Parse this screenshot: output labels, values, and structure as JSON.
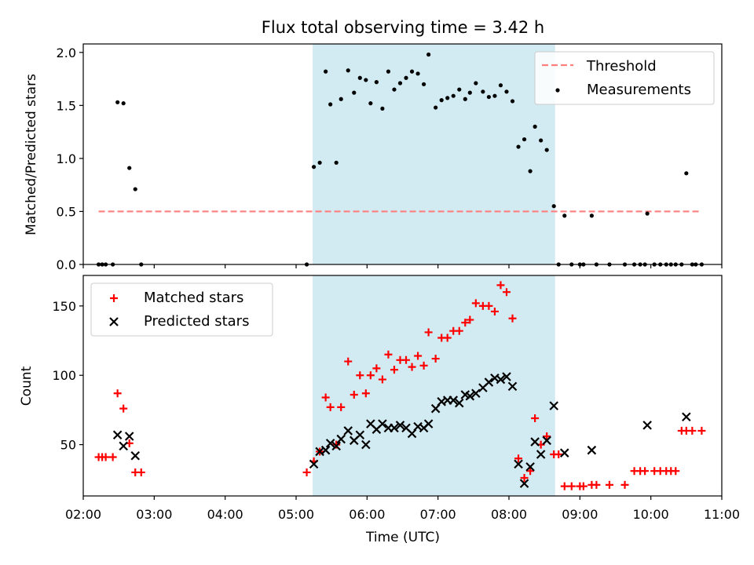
{
  "title": "Flux total observing time = 3.42 h",
  "xlabel": "Time (UTC)",
  "x_tick_labels": [
    "02:00",
    "03:00",
    "04:00",
    "05:00",
    "06:00",
    "07:00",
    "08:00",
    "09:00",
    "10:00",
    "11:00"
  ],
  "colors": {
    "threshold": "#ff7f7f",
    "measurements": "#000000",
    "matched": "#ff0000",
    "predicted": "#000000",
    "span": "#add8e6"
  },
  "chart_data": [
    {
      "type": "scatter",
      "ylabel": "Matched/Predicted stars",
      "xlim": [
        "02:00",
        "11:00"
      ],
      "ylim": [
        0,
        2.08
      ],
      "yticks": [
        0.0,
        0.5,
        1.0,
        1.5,
        2.0
      ],
      "ytick_labels": [
        "0.0",
        "0.5",
        "1.0",
        "1.5",
        "2.0"
      ],
      "legend": {
        "placement": "top-right",
        "entries": [
          "Threshold",
          "Measurements"
        ]
      },
      "highlight_span": [
        "05:14",
        "08:39"
      ],
      "threshold": {
        "name": "Threshold",
        "y": 0.5,
        "x_range": [
          "02:13",
          "10:43"
        ],
        "style": "dashed"
      },
      "series": [
        {
          "name": "Measurements",
          "points": [
            [
              "02:13",
              0
            ],
            [
              "02:16",
              0
            ],
            [
              "02:19",
              0
            ],
            [
              "02:25",
              0
            ],
            [
              "02:29",
              1.53
            ],
            [
              "02:34",
              1.52
            ],
            [
              "02:39",
              0.91
            ],
            [
              "02:44",
              0.71
            ],
            [
              "02:49",
              0
            ],
            [
              "05:09",
              0
            ],
            [
              "05:15",
              0.92
            ],
            [
              "05:20",
              0.96
            ],
            [
              "05:25",
              1.82
            ],
            [
              "05:29",
              1.51
            ],
            [
              "05:34",
              0.96
            ],
            [
              "05:38",
              1.56
            ],
            [
              "05:44",
              1.83
            ],
            [
              "05:49",
              1.62
            ],
            [
              "05:54",
              1.76
            ],
            [
              "05:59",
              1.74
            ],
            [
              "06:03",
              1.52
            ],
            [
              "06:08",
              1.72
            ],
            [
              "06:13",
              1.47
            ],
            [
              "06:18",
              1.82
            ],
            [
              "06:23",
              1.65
            ],
            [
              "06:28",
              1.71
            ],
            [
              "06:33",
              1.76
            ],
            [
              "06:38",
              1.82
            ],
            [
              "06:43",
              1.8
            ],
            [
              "06:48",
              1.7
            ],
            [
              "06:52",
              1.98
            ],
            [
              "06:58",
              1.48
            ],
            [
              "07:03",
              1.55
            ],
            [
              "07:08",
              1.57
            ],
            [
              "07:13",
              1.59
            ],
            [
              "07:18",
              1.65
            ],
            [
              "07:23",
              1.56
            ],
            [
              "07:27",
              1.62
            ],
            [
              "07:32",
              1.71
            ],
            [
              "07:38",
              1.63
            ],
            [
              "07:43",
              1.58
            ],
            [
              "07:48",
              1.59
            ],
            [
              "07:53",
              1.69
            ],
            [
              "07:58",
              1.63
            ],
            [
              "08:03",
              1.54
            ],
            [
              "08:08",
              1.11
            ],
            [
              "08:13",
              1.18
            ],
            [
              "08:18",
              0.88
            ],
            [
              "08:22",
              1.3
            ],
            [
              "08:27",
              1.17
            ],
            [
              "08:32",
              1.08
            ],
            [
              "08:38",
              0.55
            ],
            [
              "08:42",
              0
            ],
            [
              "08:47",
              0.46
            ],
            [
              "08:53",
              0
            ],
            [
              "09:00",
              0
            ],
            [
              "09:03",
              0
            ],
            [
              "09:10",
              0.46
            ],
            [
              "09:14",
              0
            ],
            [
              "09:25",
              0
            ],
            [
              "09:38",
              0
            ],
            [
              "09:46",
              0
            ],
            [
              "09:51",
              0
            ],
            [
              "09:55",
              0
            ],
            [
              "09:57",
              0.48
            ],
            [
              "10:03",
              0
            ],
            [
              "10:08",
              0
            ],
            [
              "10:13",
              0
            ],
            [
              "10:17",
              0
            ],
            [
              "10:21",
              0
            ],
            [
              "10:26",
              0
            ],
            [
              "10:30",
              0.86
            ],
            [
              "10:35",
              0
            ],
            [
              "10:38",
              0
            ],
            [
              "10:43",
              0
            ]
          ]
        }
      ]
    },
    {
      "type": "scatter",
      "ylabel": "Count",
      "xlim": [
        "02:00",
        "11:00"
      ],
      "ylim": [
        13,
        172
      ],
      "yticks": [
        50,
        100,
        150
      ],
      "ytick_labels": [
        "50",
        "100",
        "150"
      ],
      "legend": {
        "placement": "top-left",
        "entries": [
          "Matched stars",
          "Predicted stars"
        ]
      },
      "highlight_span": [
        "05:14",
        "08:39"
      ],
      "series": [
        {
          "name": "Matched stars",
          "marker": "plus",
          "points": [
            [
              "02:13",
              41
            ],
            [
              "02:16",
              41
            ],
            [
              "02:19",
              41
            ],
            [
              "02:25",
              41
            ],
            [
              "02:29",
              87
            ],
            [
              "02:34",
              76
            ],
            [
              "02:39",
              51
            ],
            [
              "02:44",
              30
            ],
            [
              "02:49",
              30
            ],
            [
              "05:09",
              30
            ],
            [
              "05:15",
              38
            ],
            [
              "05:20",
              45
            ],
            [
              "05:25",
              84
            ],
            [
              "05:29",
              77
            ],
            [
              "05:34",
              50
            ],
            [
              "05:38",
              77
            ],
            [
              "05:44",
              110
            ],
            [
              "05:49",
              86
            ],
            [
              "05:54",
              100
            ],
            [
              "05:59",
              87
            ],
            [
              "06:03",
              100
            ],
            [
              "06:08",
              105
            ],
            [
              "06:13",
              97
            ],
            [
              "06:18",
              115
            ],
            [
              "06:23",
              104
            ],
            [
              "06:28",
              111
            ],
            [
              "06:33",
              111
            ],
            [
              "06:38",
              106
            ],
            [
              "06:43",
              114
            ],
            [
              "06:48",
              107
            ],
            [
              "06:52",
              131
            ],
            [
              "06:58",
              112
            ],
            [
              "07:03",
              127
            ],
            [
              "07:08",
              127
            ],
            [
              "07:13",
              132
            ],
            [
              "07:18",
              132
            ],
            [
              "07:23",
              138
            ],
            [
              "07:27",
              140
            ],
            [
              "07:32",
              152
            ],
            [
              "07:38",
              150
            ],
            [
              "07:43",
              150
            ],
            [
              "07:48",
              146
            ],
            [
              "07:53",
              165
            ],
            [
              "07:58",
              160
            ],
            [
              "08:03",
              141
            ],
            [
              "08:08",
              40
            ],
            [
              "08:13",
              26
            ],
            [
              "08:18",
              31
            ],
            [
              "08:22",
              69
            ],
            [
              "08:27",
              50
            ],
            [
              "08:32",
              56
            ],
            [
              "08:38",
              43
            ],
            [
              "08:42",
              43
            ],
            [
              "08:47",
              20
            ],
            [
              "08:53",
              20
            ],
            [
              "09:00",
              20
            ],
            [
              "09:03",
              20
            ],
            [
              "09:10",
              21
            ],
            [
              "09:14",
              21
            ],
            [
              "09:25",
              21
            ],
            [
              "09:38",
              21
            ],
            [
              "09:46",
              31
            ],
            [
              "09:51",
              31
            ],
            [
              "09:55",
              31
            ],
            [
              "10:03",
              31
            ],
            [
              "10:08",
              31
            ],
            [
              "10:13",
              31
            ],
            [
              "10:17",
              31
            ],
            [
              "10:21",
              31
            ],
            [
              "10:26",
              60
            ],
            [
              "10:30",
              60
            ],
            [
              "10:35",
              60
            ],
            [
              "10:43",
              60
            ]
          ]
        },
        {
          "name": "Predicted stars",
          "marker": "x",
          "points": [
            [
              "02:29",
              57
            ],
            [
              "02:34",
              49
            ],
            [
              "02:39",
              56
            ],
            [
              "02:44",
              42
            ],
            [
              "05:15",
              36
            ],
            [
              "05:20",
              45
            ],
            [
              "05:25",
              46
            ],
            [
              "05:29",
              51
            ],
            [
              "05:34",
              49
            ],
            [
              "05:38",
              54
            ],
            [
              "05:44",
              60
            ],
            [
              "05:49",
              53
            ],
            [
              "05:54",
              57
            ],
            [
              "05:59",
              50
            ],
            [
              "06:03",
              65
            ],
            [
              "06:08",
              61
            ],
            [
              "06:13",
              65
            ],
            [
              "06:18",
              62
            ],
            [
              "06:23",
              62
            ],
            [
              "06:28",
              64
            ],
            [
              "06:33",
              62
            ],
            [
              "06:38",
              58
            ],
            [
              "06:43",
              63
            ],
            [
              "06:48",
              62
            ],
            [
              "06:52",
              65
            ],
            [
              "06:58",
              76
            ],
            [
              "07:03",
              81
            ],
            [
              "07:08",
              82
            ],
            [
              "07:13",
              82
            ],
            [
              "07:18",
              80
            ],
            [
              "07:23",
              86
            ],
            [
              "07:27",
              85
            ],
            [
              "07:32",
              87
            ],
            [
              "07:38",
              91
            ],
            [
              "07:43",
              95
            ],
            [
              "07:48",
              98
            ],
            [
              "07:53",
              97
            ],
            [
              "07:58",
              99
            ],
            [
              "08:03",
              92
            ],
            [
              "08:08",
              36
            ],
            [
              "08:13",
              22
            ],
            [
              "08:18",
              34
            ],
            [
              "08:22",
              52
            ],
            [
              "08:27",
              43
            ],
            [
              "08:32",
              53
            ],
            [
              "08:38",
              78
            ],
            [
              "08:47",
              44
            ],
            [
              "09:10",
              46
            ],
            [
              "09:57",
              64
            ],
            [
              "10:30",
              70
            ]
          ]
        }
      ]
    }
  ]
}
